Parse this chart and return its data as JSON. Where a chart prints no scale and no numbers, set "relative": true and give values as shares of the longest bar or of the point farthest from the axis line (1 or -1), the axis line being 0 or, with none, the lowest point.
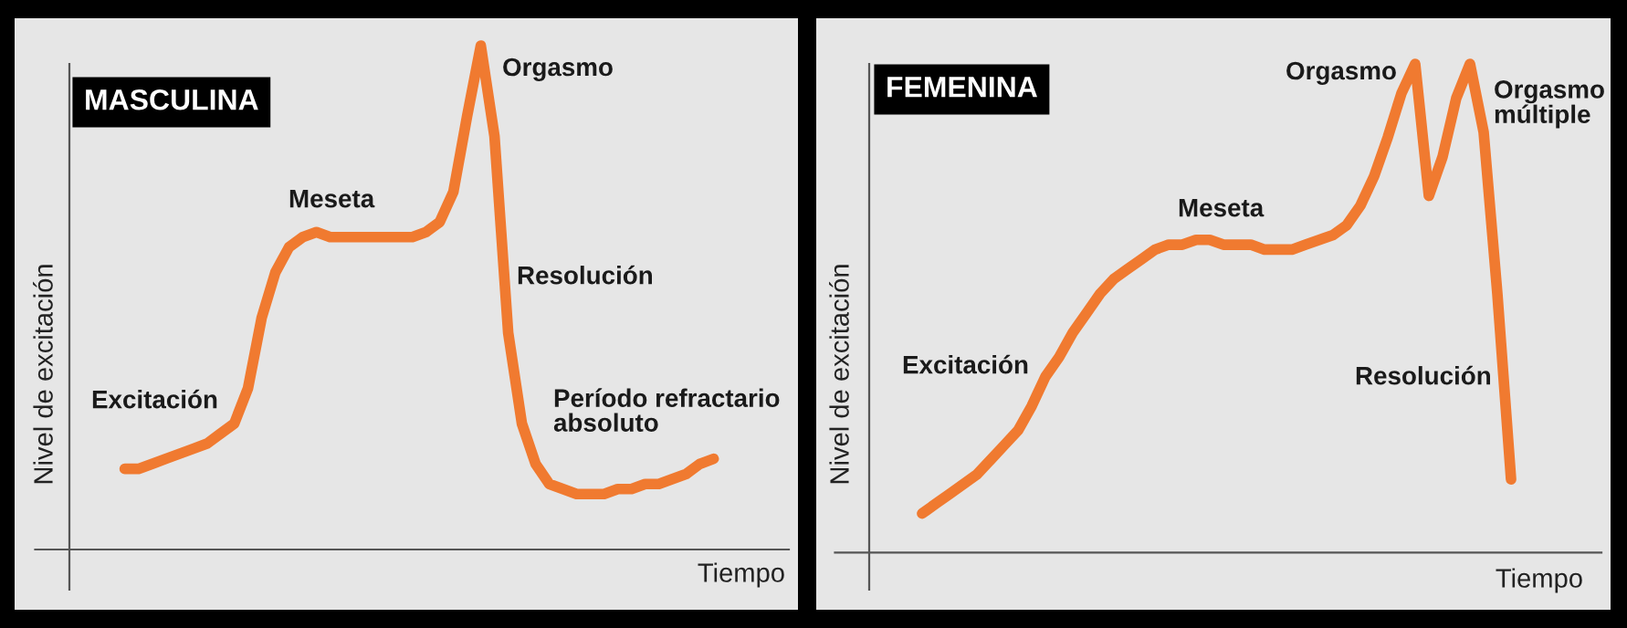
{
  "chart_data": [
    {
      "type": "line",
      "title": "MASCULINA",
      "xlabel": "Tiempo",
      "ylabel": "Nivel de excitación",
      "relative": true,
      "categories": [
        null,
        null,
        null,
        null,
        null,
        null,
        null,
        null,
        null,
        null,
        null,
        null,
        null,
        null,
        null,
        null,
        null,
        null,
        null,
        null,
        null,
        null,
        null,
        null,
        null,
        null,
        null,
        null,
        null,
        null,
        null,
        null,
        null,
        null,
        null,
        null,
        null,
        null,
        null,
        null,
        null,
        null,
        null,
        null
      ],
      "series": [
        {
          "color": "#f07a30",
          "values": [
            0.16,
            0.16,
            0.17,
            0.18,
            0.19,
            0.2,
            0.21,
            0.23,
            0.25,
            0.32,
            0.46,
            0.55,
            0.6,
            0.62,
            0.63,
            0.62,
            0.62,
            0.62,
            0.62,
            0.62,
            0.62,
            0.62,
            0.63,
            0.65,
            0.71,
            0.86,
            1.0,
            0.82,
            0.43,
            0.25,
            0.17,
            0.13,
            0.12,
            0.11,
            0.11,
            0.11,
            0.12,
            0.12,
            0.13,
            0.13,
            0.14,
            0.15,
            0.17,
            0.18
          ]
        }
      ],
      "annotations": [
        "Excitación",
        "Meseta",
        "Orgasmo",
        "Resolución",
        "Período refractario\nabsoluto"
      ]
    },
    {
      "type": "line",
      "title": "FEMENINA",
      "xlabel": "Tiempo",
      "ylabel": "Nivel de excitación",
      "relative": true,
      "categories": [
        null,
        null,
        null,
        null,
        null,
        null,
        null,
        null,
        null,
        null,
        null,
        null,
        null,
        null,
        null,
        null,
        null,
        null,
        null,
        null,
        null,
        null,
        null,
        null,
        null,
        null,
        null,
        null,
        null,
        null,
        null,
        null,
        null,
        null,
        null,
        null,
        null,
        null,
        null,
        null,
        null,
        null,
        null,
        null
      ],
      "series": [
        {
          "color": "#f07a30",
          "values": [
            0.08,
            0.1,
            0.12,
            0.14,
            0.16,
            0.19,
            0.22,
            0.25,
            0.3,
            0.36,
            0.4,
            0.45,
            0.49,
            0.53,
            0.56,
            0.58,
            0.6,
            0.62,
            0.63,
            0.63,
            0.64,
            0.64,
            0.63,
            0.63,
            0.63,
            0.62,
            0.62,
            0.62,
            0.63,
            0.64,
            0.65,
            0.67,
            0.71,
            0.77,
            0.85,
            0.94,
            1.0,
            0.73,
            0.81,
            0.93,
            1.0,
            0.86,
            0.53,
            0.15
          ]
        }
      ],
      "annotations": [
        "Excitación",
        "Meseta",
        "Orgasmo",
        "Orgasmo\nmúltiple",
        "Resolución"
      ]
    }
  ]
}
